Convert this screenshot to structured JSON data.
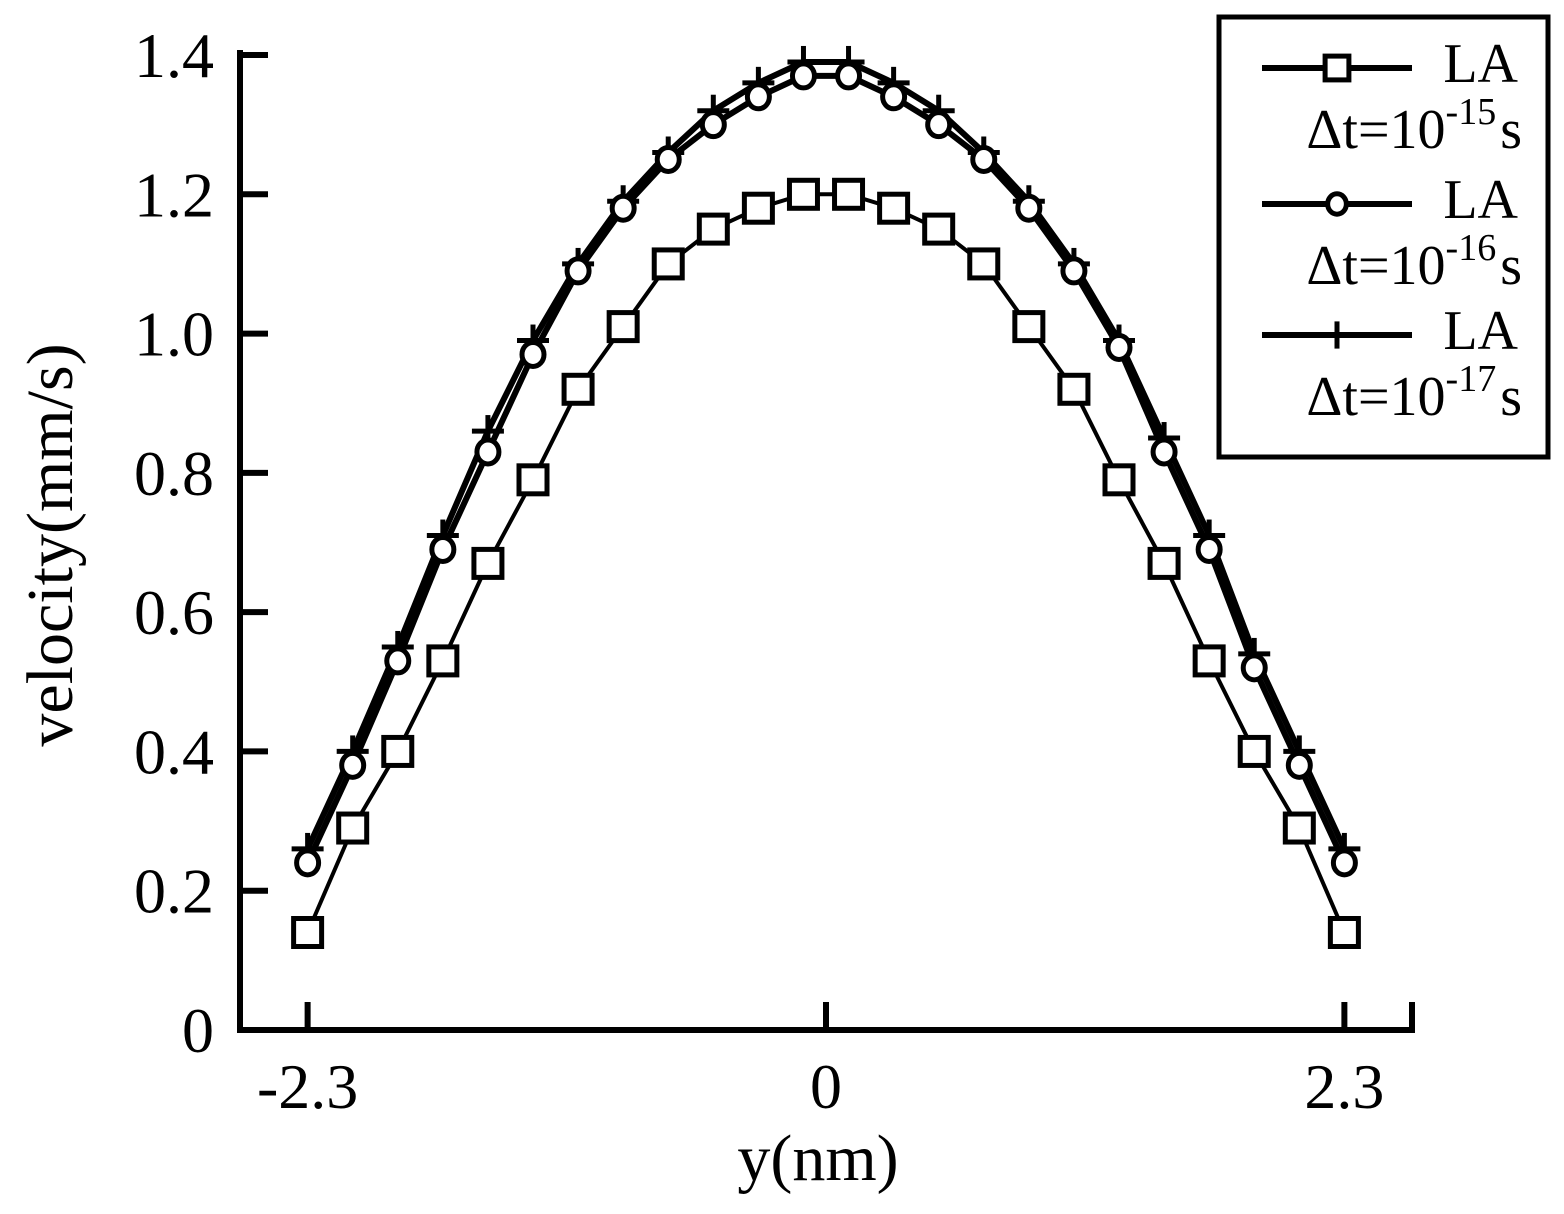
{
  "chart_data": {
    "type": "line",
    "xlabel": "y(nm)",
    "ylabel": "velocity(mm/s)",
    "xlim": [
      -2.6,
      2.6
    ],
    "ylim": [
      0,
      1.4
    ],
    "x_ticks": [
      -2.3,
      0,
      2.3
    ],
    "x_tick_labels": [
      "-2.3",
      "0",
      "2.3"
    ],
    "y_ticks": [
      0,
      0.2,
      0.4,
      0.6,
      0.8,
      1.0,
      1.2,
      1.4
    ],
    "y_tick_labels": [
      "0",
      "0.2",
      "0.4",
      "0.6",
      "0.8",
      "1.0",
      "1.2",
      "1.4"
    ],
    "grid": false,
    "legend_position": "top-right",
    "x": [
      -2.3,
      -2.1,
      -1.9,
      -1.7,
      -1.5,
      -1.3,
      -1.1,
      -0.9,
      -0.7,
      -0.5,
      -0.3,
      -0.1,
      0.1,
      0.3,
      0.5,
      0.7,
      0.9,
      1.1,
      1.3,
      1.5,
      1.7,
      1.9,
      2.1,
      2.3
    ],
    "series": [
      {
        "legend_name": "LA",
        "legend_base": "Δt=10",
        "legend_exp": "-15",
        "legend_unit": "s",
        "marker": "square",
        "values": [
          0.14,
          0.29,
          0.4,
          0.53,
          0.67,
          0.79,
          0.92,
          1.01,
          1.1,
          1.15,
          1.18,
          1.2,
          1.2,
          1.18,
          1.15,
          1.1,
          1.01,
          0.92,
          0.79,
          0.67,
          0.53,
          0.4,
          0.29,
          0.14
        ]
      },
      {
        "legend_name": "LA",
        "legend_base": "Δt=10",
        "legend_exp": "-16",
        "legend_unit": "s",
        "marker": "circle",
        "values": [
          0.24,
          0.38,
          0.53,
          0.69,
          0.83,
          0.97,
          1.09,
          1.18,
          1.25,
          1.3,
          1.34,
          1.37,
          1.37,
          1.34,
          1.3,
          1.25,
          1.18,
          1.09,
          0.98,
          0.83,
          0.69,
          0.52,
          0.38,
          0.24
        ]
      },
      {
        "legend_name": "LA",
        "legend_base": "Δt=10",
        "legend_exp": "-17",
        "legend_unit": "s",
        "marker": "plus",
        "values": [
          0.26,
          0.4,
          0.55,
          0.71,
          0.86,
          0.99,
          1.1,
          1.19,
          1.26,
          1.32,
          1.36,
          1.39,
          1.39,
          1.36,
          1.32,
          1.26,
          1.19,
          1.1,
          0.99,
          0.85,
          0.71,
          0.54,
          0.4,
          0.26
        ]
      }
    ]
  }
}
